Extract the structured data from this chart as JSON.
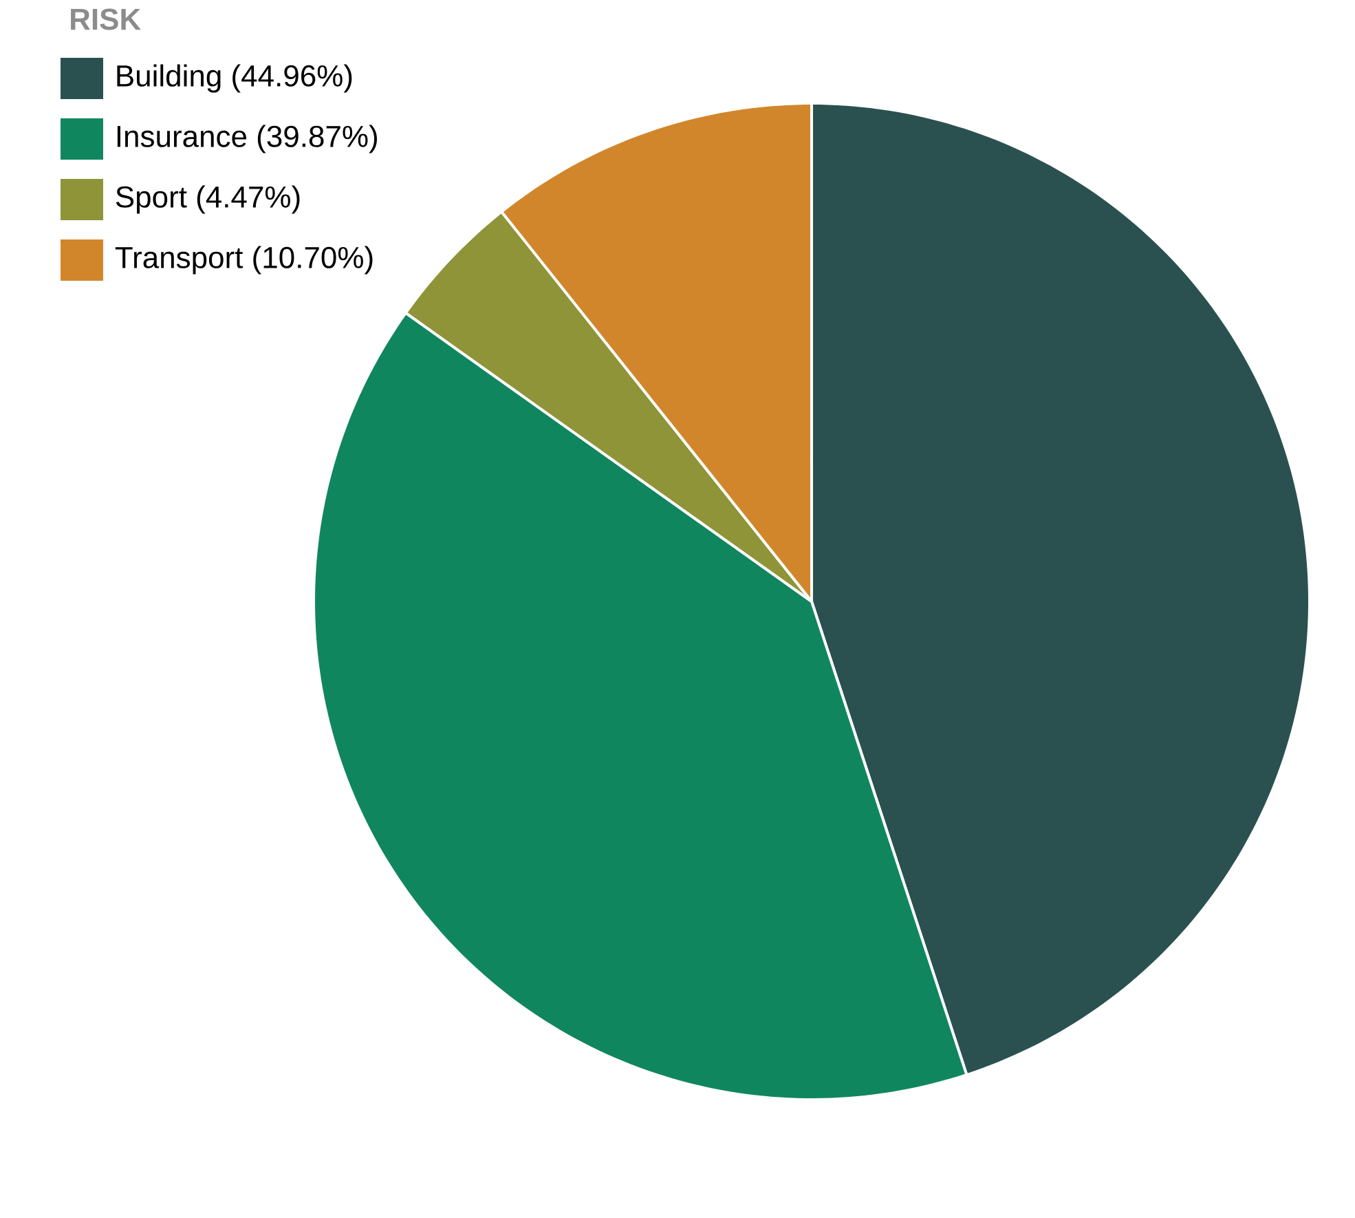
{
  "chart_data": {
    "type": "pie",
    "legend_title": "RISK",
    "legend": "top left",
    "categories": [
      "Building (44.96%)",
      "Insurance (39.87%)",
      "Sport (4.47%)",
      "Transport (10.70%)"
    ],
    "values": [
      44.96,
      39.87,
      4.47,
      10.7
    ],
    "colors": [
      "#2a514f",
      "#10865f",
      "#8f9438",
      "#d2862c"
    ]
  }
}
